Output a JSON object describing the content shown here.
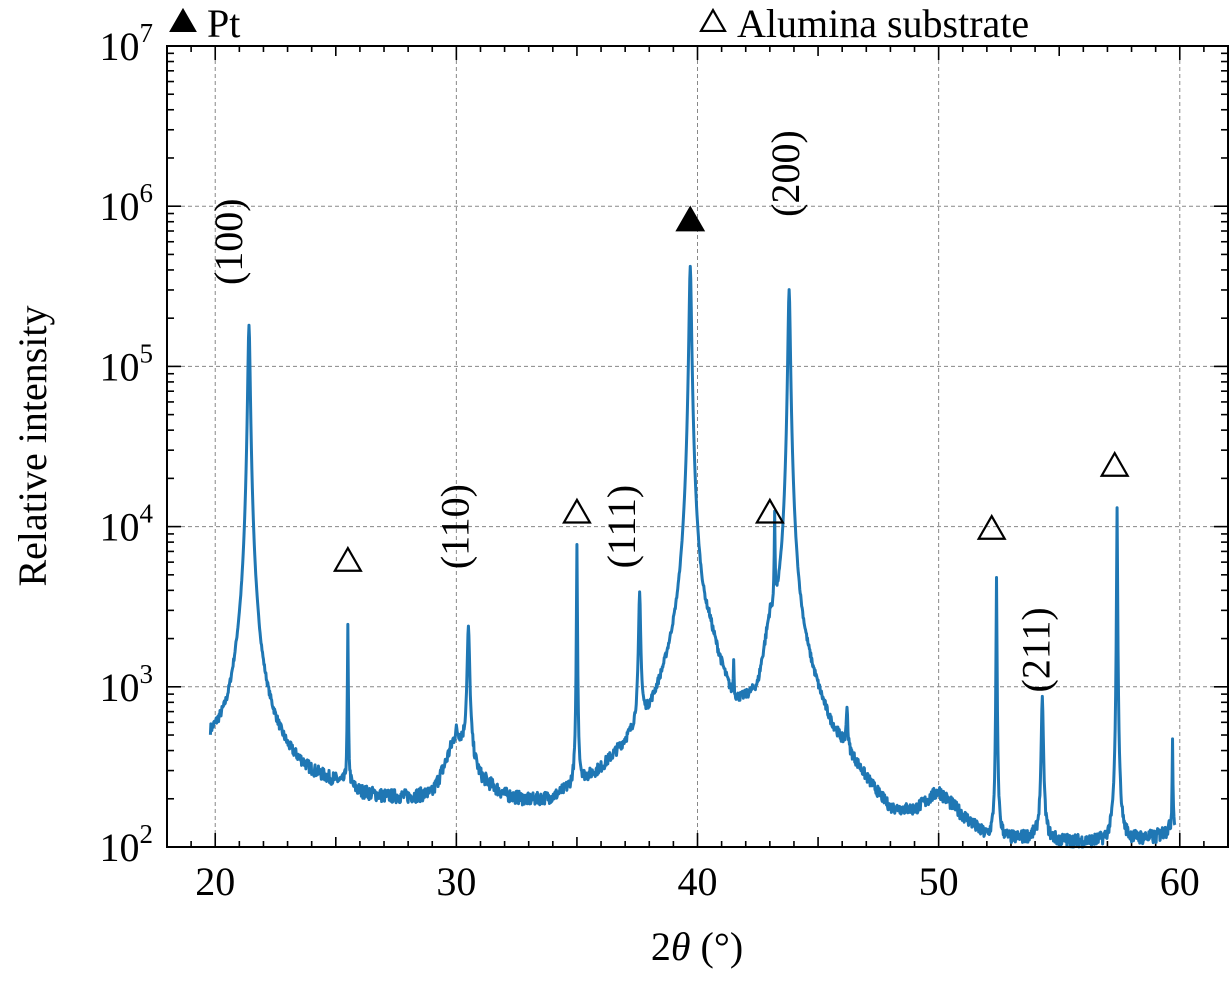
{
  "chart_data": {
    "type": "line",
    "title": "",
    "xlabel": "2θ (°)",
    "ylabel": "Relative intensity",
    "xlim": [
      18,
      62
    ],
    "ylim": [
      100,
      10000000
    ],
    "yscale": "log",
    "grid": true,
    "xticks": [
      20,
      30,
      40,
      50,
      60
    ],
    "xtick_labels": [
      "20",
      "30",
      "40",
      "50",
      "60"
    ],
    "yticks": [
      100,
      1000,
      10000,
      100000,
      1000000,
      10000000
    ],
    "ytick_labels": [
      {
        "base": "10",
        "exp": "2"
      },
      {
        "base": "10",
        "exp": "3"
      },
      {
        "base": "10",
        "exp": "4"
      },
      {
        "base": "10",
        "exp": "5"
      },
      {
        "base": "10",
        "exp": "6"
      },
      {
        "base": "10",
        "exp": "7"
      }
    ],
    "legend": [
      {
        "marker": "filled-triangle",
        "label": "Pt"
      },
      {
        "marker": "open-triangle",
        "label": "Alumina substrate"
      }
    ],
    "background": [
      [
        19.8,
        400
      ],
      [
        20.5,
        430
      ],
      [
        21.0,
        700
      ],
      [
        22.2,
        420
      ],
      [
        23.0,
        300
      ],
      [
        24.0,
        250
      ],
      [
        25.0,
        230
      ],
      [
        26.0,
        200
      ],
      [
        27.0,
        190
      ],
      [
        28.0,
        190
      ],
      [
        29.0,
        200
      ],
      [
        29.5,
        300
      ],
      [
        30.0,
        500
      ],
      [
        31.0,
        250
      ],
      [
        32.0,
        190
      ],
      [
        33.0,
        170
      ],
      [
        34.0,
        170
      ],
      [
        35.0,
        200
      ],
      [
        36.0,
        240
      ],
      [
        37.0,
        330
      ],
      [
        38.0,
        450
      ],
      [
        39.0,
        900
      ],
      [
        40.5,
        1500
      ],
      [
        41.5,
        500
      ],
      [
        42.5,
        600
      ],
      [
        43.0,
        2000
      ],
      [
        44.5,
        900
      ],
      [
        45.5,
        400
      ],
      [
        46.2,
        300
      ],
      [
        47.0,
        200
      ],
      [
        48.0,
        130
      ],
      [
        49.0,
        140
      ],
      [
        50.0,
        200
      ],
      [
        51.0,
        140
      ],
      [
        52.0,
        100
      ],
      [
        53.0,
        100
      ],
      [
        54.0,
        105
      ],
      [
        55.0,
        100
      ],
      [
        56.0,
        100
      ],
      [
        57.0,
        100
      ],
      [
        58.0,
        105
      ],
      [
        59.0,
        110
      ],
      [
        59.8,
        130
      ]
    ],
    "peaks": [
      {
        "x": 21.4,
        "y": 180000,
        "w": 0.09
      },
      {
        "x": 25.5,
        "y": 2200,
        "w": 0.03
      },
      {
        "x": 30.5,
        "y": 2000,
        "w": 0.1
      },
      {
        "x": 35.0,
        "y": 7500,
        "w": 0.03
      },
      {
        "x": 37.6,
        "y": 3300,
        "w": 0.08
      },
      {
        "x": 39.7,
        "y": 420000,
        "w": 0.09
      },
      {
        "x": 41.5,
        "y": 650,
        "w": 0.03
      },
      {
        "x": 43.2,
        "y": 9000,
        "w": 0.03
      },
      {
        "x": 43.8,
        "y": 300000,
        "w": 0.09
      },
      {
        "x": 46.2,
        "y": 350,
        "w": 0.06
      },
      {
        "x": 52.4,
        "y": 4700,
        "w": 0.03
      },
      {
        "x": 54.3,
        "y": 750,
        "w": 0.08
      },
      {
        "x": 57.4,
        "y": 13000,
        "w": 0.03
      },
      {
        "x": 59.7,
        "y": 350,
        "w": 0.03
      }
    ],
    "annotations": [
      {
        "text": "(100)",
        "x": 21.1,
        "y": 600000
      },
      {
        "text": "(110)",
        "x": 30.5,
        "y": 10000
      },
      {
        "text": "(111)",
        "x": 37.4,
        "y": 10000
      },
      {
        "text": "(200)",
        "x": 44.2,
        "y": 1600000
      },
      {
        "text": "(211)",
        "x": 54.6,
        "y": 1700
      }
    ],
    "markers": [
      {
        "type": "filled-triangle",
        "x": 39.7,
        "y": 800000
      },
      {
        "type": "open-triangle",
        "x": 25.5,
        "y": 6000
      },
      {
        "type": "open-triangle",
        "x": 35.0,
        "y": 12000
      },
      {
        "type": "open-triangle",
        "x": 43.0,
        "y": 12000
      },
      {
        "type": "open-triangle",
        "x": 52.2,
        "y": 9500
      },
      {
        "type": "open-triangle",
        "x": 57.3,
        "y": 23500
      }
    ]
  }
}
